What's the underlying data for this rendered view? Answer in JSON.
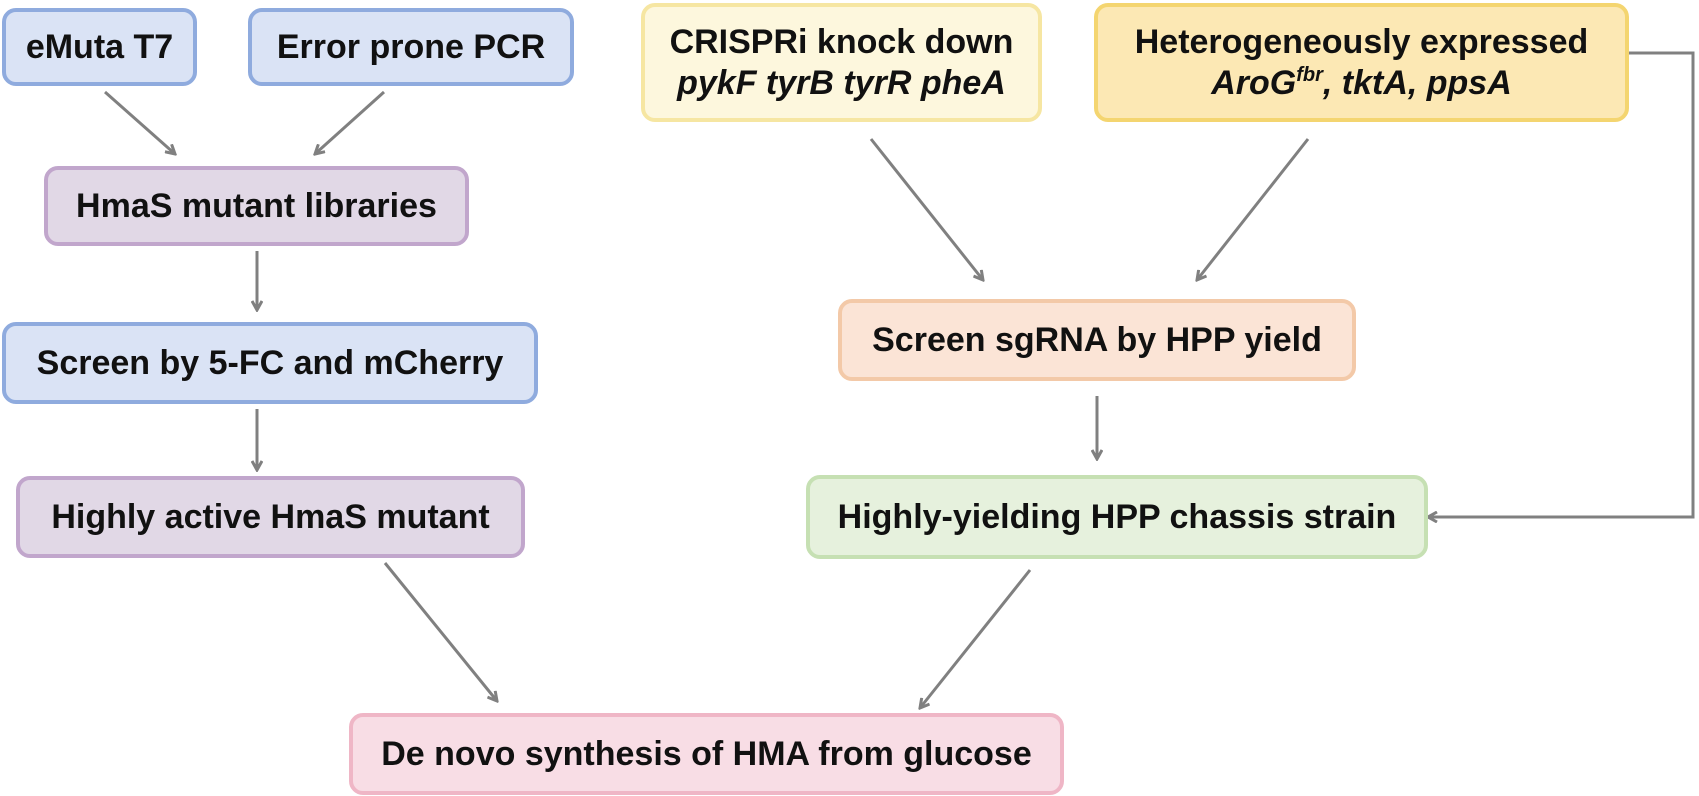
{
  "nodes": {
    "emuta": {
      "text": "eMuta T7"
    },
    "error_pcr": {
      "text": "Error prone PCR"
    },
    "mutant_libraries": {
      "text": "HmaS mutant libraries"
    },
    "screen_5fc": {
      "text": "Screen by 5-FC and mCherry"
    },
    "active_mutant": {
      "text": "Highly active HmaS mutant"
    },
    "crispri": {
      "line1": "CRISPRi knock down",
      "line2": "pykF tyrB tyrR pheA"
    },
    "hetero": {
      "line1": "Heterogeneously expressed",
      "arog": "AroG",
      "arog_sup": "fbr",
      "rest": ", tktA, ppsA"
    },
    "screen_sgrna": {
      "text": "Screen sgRNA by HPP yield"
    },
    "chassis": {
      "text": "Highly-yielding HPP chassis strain"
    },
    "denovo": {
      "text": "De novo synthesis of HMA from glucose"
    }
  },
  "colors": {
    "arrow": "#808080",
    "blue_fill": "#dae3f5",
    "blue_border": "#8fabde",
    "purple_fill": "#e1d8e6",
    "purple_border": "#c1a6cc",
    "yellow_fill": "#fdf7dd",
    "yellow_border": "#f6e6a2",
    "gold_fill": "#fce8b4",
    "gold_border": "#f4d570",
    "orange_fill": "#fbe4d6",
    "orange_border": "#f3c9a8",
    "green_fill": "#e6f1dd",
    "green_border": "#c6e0b3",
    "pink_fill": "#f8dde5",
    "pink_border": "#efb6c6"
  }
}
